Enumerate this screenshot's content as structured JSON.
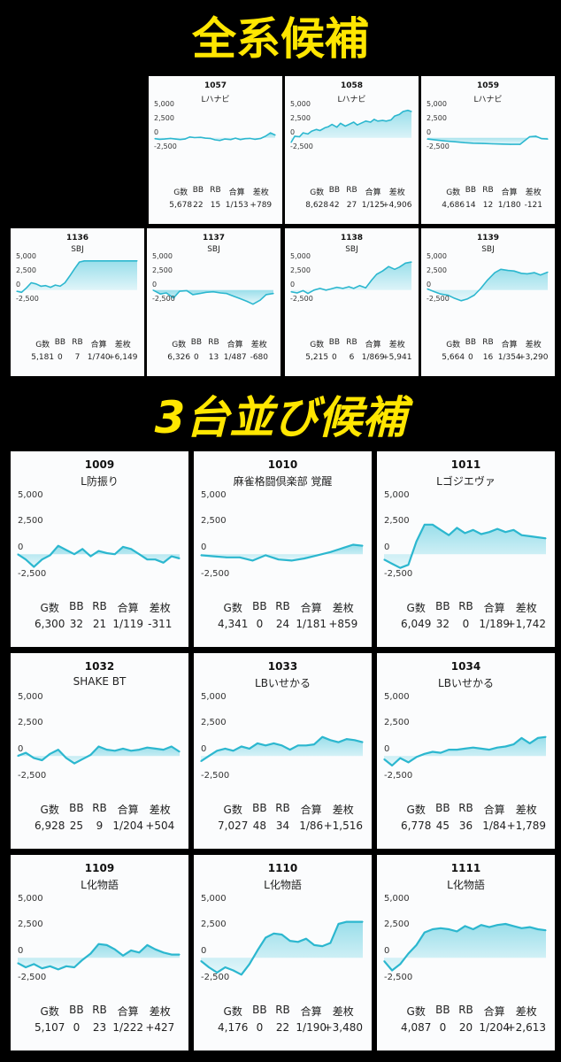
{
  "headings": {
    "section1": "全系候補",
    "section2": "3台並び候補"
  },
  "stat_labels": [
    "G数",
    "BB",
    "RB",
    "合算",
    "差枚"
  ],
  "y_tick_labels": [
    "5,000",
    "2,500",
    "0",
    "-2,500"
  ],
  "colors": {
    "line": "#2cb7cf",
    "fill_top": "#8fdbe8",
    "fill_bottom": "#e3f6fa",
    "heading": "#ffe600"
  },
  "chart_data": [
    {
      "type": "area",
      "machine_no": "1057",
      "machine_name": "Lハナビ",
      "ylim": [
        -3500,
        5800
      ],
      "y_ticks": [
        5000,
        2500,
        0,
        -2500
      ],
      "grid": false,
      "stats": {
        "games": "5,678",
        "bb": "22",
        "rb": "15",
        "total": "1/153",
        "diff": "+789"
      },
      "x": [
        0,
        0.04,
        0.08,
        0.13,
        0.17,
        0.21,
        0.25,
        0.29,
        0.33,
        0.38,
        0.42,
        0.46,
        0.5,
        0.54,
        0.58,
        0.63,
        0.67,
        0.71,
        0.75,
        0.79,
        0.83,
        0.88,
        0.92,
        0.96,
        1
      ],
      "y": [
        -150,
        -250,
        -200,
        -100,
        -200,
        -300,
        -200,
        150,
        50,
        100,
        -50,
        -100,
        -350,
        -450,
        -200,
        -300,
        -50,
        -300,
        -150,
        -100,
        -250,
        -100,
        300,
        900,
        500
      ]
    },
    {
      "type": "area",
      "machine_no": "1058",
      "machine_name": "Lハナビ",
      "ylim": [
        -3500,
        5800
      ],
      "y_ticks": [
        5000,
        2500,
        0,
        -2500
      ],
      "grid": false,
      "stats": {
        "games": "8,628",
        "bb": "42",
        "rb": "27",
        "total": "1/125",
        "diff": "+4,906"
      },
      "x": [
        0,
        0.03,
        0.07,
        0.1,
        0.14,
        0.17,
        0.21,
        0.24,
        0.28,
        0.31,
        0.34,
        0.38,
        0.41,
        0.45,
        0.48,
        0.52,
        0.55,
        0.59,
        0.62,
        0.66,
        0.69,
        0.72,
        0.76,
        0.79,
        0.83,
        0.86,
        0.9,
        0.93,
        0.97,
        1
      ],
      "y": [
        -800,
        300,
        200,
        900,
        700,
        1200,
        1500,
        1300,
        1800,
        2000,
        2400,
        1900,
        2600,
        2100,
        2400,
        2800,
        2300,
        2700,
        3000,
        2800,
        3300,
        3000,
        3100,
        3000,
        3200,
        3900,
        4200,
        4700,
        4900,
        4700
      ]
    },
    {
      "type": "area",
      "machine_no": "1059",
      "machine_name": "Lハナビ",
      "ylim": [
        -3500,
        5800
      ],
      "y_ticks": [
        5000,
        2500,
        0,
        -2500
      ],
      "grid": false,
      "stats": {
        "games": "4,686",
        "bb": "14",
        "rb": "12",
        "total": "1/180",
        "diff": "-121"
      },
      "x": [
        0,
        0.08,
        0.15,
        0.23,
        0.31,
        0.38,
        0.46,
        0.54,
        0.62,
        0.69,
        0.77,
        0.85,
        0.9,
        0.95,
        1
      ],
      "y": [
        -200,
        -400,
        -550,
        -700,
        -850,
        -950,
        -1000,
        -1050,
        -1100,
        -1150,
        -1150,
        200,
        300,
        -150,
        -200
      ]
    },
    {
      "type": "area",
      "machine_no": "1136",
      "machine_name": "SBJ",
      "ylim": [
        -3500,
        5800
      ],
      "y_ticks": [
        5000,
        2500,
        0,
        -2500
      ],
      "grid": false,
      "stats": {
        "games": "5,181",
        "bb": "0",
        "rb": "7",
        "total": "1/740",
        "diff": "+6,149"
      },
      "x": [
        0,
        0.04,
        0.08,
        0.12,
        0.16,
        0.2,
        0.24,
        0.28,
        0.32,
        0.36,
        0.4,
        0.44,
        0.48,
        0.52,
        0.56,
        0.6,
        0.64,
        0.68,
        0.72,
        0.76,
        0.8,
        0.84,
        0.88,
        0.92,
        0.96,
        1
      ],
      "y": [
        -200,
        -400,
        400,
        1300,
        1100,
        700,
        800,
        500,
        900,
        700,
        1300,
        2500,
        3800,
        5000,
        5200,
        5200,
        5200,
        5200,
        5200,
        5200,
        5200,
        5200,
        5200,
        5200,
        5200,
        5200
      ]
    },
    {
      "type": "area",
      "machine_no": "1137",
      "machine_name": "SBJ",
      "ylim": [
        -3500,
        5800
      ],
      "y_ticks": [
        5000,
        2500,
        0,
        -2500
      ],
      "grid": false,
      "stats": {
        "games": "6,326",
        "bb": "0",
        "rb": "13",
        "total": "1/487",
        "diff": "-680"
      },
      "x": [
        0,
        0.06,
        0.11,
        0.17,
        0.22,
        0.28,
        0.33,
        0.39,
        0.44,
        0.5,
        0.56,
        0.61,
        0.67,
        0.72,
        0.78,
        0.83,
        0.89,
        0.94,
        1
      ],
      "y": [
        0,
        -700,
        -500,
        -1400,
        -200,
        -100,
        -800,
        -600,
        -400,
        -300,
        -500,
        -600,
        -1100,
        -1500,
        -2000,
        -2500,
        -1800,
        -800,
        -600
      ]
    },
    {
      "type": "area",
      "machine_no": "1138",
      "machine_name": "SBJ",
      "ylim": [
        -3500,
        5800
      ],
      "y_ticks": [
        5000,
        2500,
        0,
        -2500
      ],
      "grid": false,
      "stats": {
        "games": "5,215",
        "bb": "0",
        "rb": "6",
        "total": "1/869",
        "diff": "+5,941"
      },
      "x": [
        0,
        0.05,
        0.1,
        0.14,
        0.19,
        0.24,
        0.29,
        0.33,
        0.38,
        0.43,
        0.48,
        0.52,
        0.57,
        0.62,
        0.67,
        0.71,
        0.76,
        0.81,
        0.86,
        0.9,
        0.95,
        1
      ],
      "y": [
        -300,
        -500,
        -100,
        -600,
        0,
        300,
        0,
        200,
        500,
        300,
        600,
        300,
        800,
        400,
        1800,
        2800,
        3400,
        4200,
        3700,
        4100,
        4800,
        5000
      ]
    },
    {
      "type": "area",
      "machine_no": "1139",
      "machine_name": "SBJ",
      "ylim": [
        -3500,
        5800
      ],
      "y_ticks": [
        5000,
        2500,
        0,
        -2500
      ],
      "grid": false,
      "stats": {
        "games": "5,664",
        "bb": "0",
        "rb": "16",
        "total": "1/354",
        "diff": "+3,290"
      },
      "x": [
        0,
        0.06,
        0.11,
        0.17,
        0.22,
        0.28,
        0.33,
        0.39,
        0.44,
        0.5,
        0.56,
        0.61,
        0.67,
        0.72,
        0.78,
        0.83,
        0.89,
        0.94,
        1
      ],
      "y": [
        200,
        -300,
        -700,
        -900,
        -1400,
        -1900,
        -1600,
        -900,
        200,
        1800,
        3100,
        3700,
        3500,
        3400,
        3000,
        2900,
        3100,
        2700,
        3200
      ]
    },
    {
      "type": "area",
      "machine_no": "1009",
      "machine_name": "L防振り",
      "ylim": [
        -3500,
        5800
      ],
      "y_ticks": [
        5000,
        2500,
        0,
        -2500
      ],
      "grid": false,
      "stats": {
        "games": "6,300",
        "bb": "32",
        "rb": "21",
        "total": "1/119",
        "diff": "-311"
      },
      "x": [
        0,
        0.05,
        0.1,
        0.15,
        0.2,
        0.25,
        0.3,
        0.35,
        0.4,
        0.45,
        0.5,
        0.55,
        0.6,
        0.65,
        0.7,
        0.75,
        0.8,
        0.85,
        0.9,
        0.95,
        1
      ],
      "y": [
        0,
        -500,
        -1200,
        -500,
        -100,
        800,
        400,
        0,
        500,
        -200,
        300,
        100,
        0,
        700,
        500,
        0,
        -500,
        -500,
        -800,
        -200,
        -400
      ]
    },
    {
      "type": "area",
      "machine_no": "1010",
      "machine_name": "麻雀格闘倶楽部 覚醒",
      "ylim": [
        -3500,
        5800
      ],
      "y_ticks": [
        5000,
        2500,
        0,
        -2500
      ],
      "grid": false,
      "stats": {
        "games": "4,341",
        "bb": "0",
        "rb": "24",
        "total": "1/181",
        "diff": "+859"
      },
      "x": [
        0,
        0.08,
        0.16,
        0.24,
        0.32,
        0.4,
        0.48,
        0.56,
        0.64,
        0.72,
        0.8,
        0.88,
        0.94,
        1
      ],
      "y": [
        -100,
        -200,
        -300,
        -300,
        -600,
        -100,
        -500,
        -600,
        -400,
        -100,
        200,
        600,
        900,
        800
      ]
    },
    {
      "type": "area",
      "machine_no": "1011",
      "machine_name": "Lゴジエヴァ",
      "ylim": [
        -3500,
        5800
      ],
      "y_ticks": [
        5000,
        2500,
        0,
        -2500
      ],
      "grid": false,
      "stats": {
        "games": "6,049",
        "bb": "32",
        "rb": "0",
        "total": "1/189",
        "diff": "+1,742"
      },
      "x": [
        0,
        0.05,
        0.1,
        0.15,
        0.2,
        0.25,
        0.3,
        0.35,
        0.4,
        0.45,
        0.5,
        0.55,
        0.6,
        0.65,
        0.7,
        0.75,
        0.8,
        0.85,
        0.9,
        0.95,
        1
      ],
      "y": [
        -500,
        -900,
        -1300,
        -1000,
        1200,
        2800,
        2800,
        2300,
        1800,
        2500,
        2000,
        2300,
        1900,
        2100,
        2400,
        2100,
        2300,
        1800,
        1700,
        1600,
        1500
      ]
    },
    {
      "type": "area",
      "machine_no": "1032",
      "machine_name": "SHAKE BT",
      "ylim": [
        -3500,
        5800
      ],
      "y_ticks": [
        5000,
        2500,
        0,
        -2500
      ],
      "grid": false,
      "stats": {
        "games": "6,928",
        "bb": "25",
        "rb": "9",
        "total": "1/204",
        "diff": "+504"
      },
      "x": [
        0,
        0.05,
        0.1,
        0.15,
        0.2,
        0.25,
        0.3,
        0.35,
        0.4,
        0.45,
        0.5,
        0.55,
        0.6,
        0.65,
        0.7,
        0.75,
        0.8,
        0.85,
        0.9,
        0.95,
        1
      ],
      "y": [
        0,
        300,
        -200,
        -400,
        200,
        600,
        -200,
        -700,
        -300,
        100,
        900,
        600,
        500,
        700,
        500,
        600,
        800,
        700,
        600,
        900,
        400
      ]
    },
    {
      "type": "area",
      "machine_no": "1033",
      "machine_name": "LBいせかる",
      "ylim": [
        -3500,
        5800
      ],
      "y_ticks": [
        5000,
        2500,
        0,
        -2500
      ],
      "grid": false,
      "stats": {
        "games": "7,027",
        "bb": "48",
        "rb": "34",
        "total": "1/86",
        "diff": "+1,516"
      },
      "x": [
        0,
        0.05,
        0.1,
        0.15,
        0.2,
        0.25,
        0.3,
        0.35,
        0.4,
        0.45,
        0.5,
        0.55,
        0.6,
        0.65,
        0.7,
        0.75,
        0.8,
        0.85,
        0.9,
        0.95,
        1
      ],
      "y": [
        -500,
        0,
        500,
        700,
        500,
        900,
        700,
        1200,
        1000,
        1200,
        1000,
        600,
        1000,
        1000,
        1100,
        1800,
        1500,
        1300,
        1600,
        1500,
        1300
      ]
    },
    {
      "type": "area",
      "machine_no": "1034",
      "machine_name": "LBいせかる",
      "ylim": [
        -3500,
        5800
      ],
      "y_ticks": [
        5000,
        2500,
        0,
        -2500
      ],
      "grid": false,
      "stats": {
        "games": "6,778",
        "bb": "45",
        "rb": "36",
        "total": "1/84",
        "diff": "+1,789"
      },
      "x": [
        0,
        0.05,
        0.1,
        0.15,
        0.2,
        0.25,
        0.3,
        0.35,
        0.4,
        0.45,
        0.5,
        0.55,
        0.6,
        0.65,
        0.7,
        0.75,
        0.8,
        0.85,
        0.9,
        0.95,
        1
      ],
      "y": [
        -300,
        -900,
        -200,
        -600,
        -100,
        200,
        400,
        300,
        600,
        600,
        700,
        800,
        700,
        600,
        800,
        900,
        1100,
        1700,
        1200,
        1700,
        1800
      ]
    },
    {
      "type": "area",
      "machine_no": "1109",
      "machine_name": "L化物語",
      "ylim": [
        -3500,
        5800
      ],
      "y_ticks": [
        5000,
        2500,
        0,
        -2500
      ],
      "grid": false,
      "stats": {
        "games": "5,107",
        "bb": "0",
        "rb": "23",
        "total": "1/222",
        "diff": "+427"
      },
      "x": [
        0,
        0.05,
        0.1,
        0.15,
        0.2,
        0.25,
        0.3,
        0.35,
        0.4,
        0.45,
        0.5,
        0.55,
        0.6,
        0.65,
        0.7,
        0.75,
        0.8,
        0.85,
        0.9,
        0.95,
        1
      ],
      "y": [
        -500,
        -900,
        -600,
        -1000,
        -800,
        -1100,
        -800,
        -900,
        -200,
        400,
        1300,
        1200,
        800,
        200,
        700,
        500,
        1200,
        800,
        500,
        300,
        300
      ]
    },
    {
      "type": "area",
      "machine_no": "1110",
      "machine_name": "L化物語",
      "ylim": [
        -3500,
        5800
      ],
      "y_ticks": [
        5000,
        2500,
        0,
        -2500
      ],
      "grid": false,
      "stats": {
        "games": "4,176",
        "bb": "0",
        "rb": "22",
        "total": "1/190",
        "diff": "+3,480"
      },
      "x": [
        0,
        0.05,
        0.1,
        0.15,
        0.2,
        0.25,
        0.3,
        0.35,
        0.4,
        0.45,
        0.5,
        0.55,
        0.6,
        0.65,
        0.7,
        0.75,
        0.8,
        0.85,
        0.9,
        0.95,
        1
      ],
      "y": [
        -300,
        -900,
        -1400,
        -900,
        -1200,
        -1600,
        -600,
        700,
        1900,
        2300,
        2200,
        1600,
        1500,
        1800,
        1200,
        1100,
        1400,
        3200,
        3400,
        3400,
        3400
      ]
    },
    {
      "type": "area",
      "machine_no": "1111",
      "machine_name": "L化物語",
      "ylim": [
        -3500,
        5800
      ],
      "y_ticks": [
        5000,
        2500,
        0,
        -2500
      ],
      "grid": false,
      "stats": {
        "games": "4,087",
        "bb": "0",
        "rb": "20",
        "total": "1/204",
        "diff": "+2,613"
      },
      "x": [
        0,
        0.05,
        0.1,
        0.15,
        0.2,
        0.25,
        0.3,
        0.35,
        0.4,
        0.45,
        0.5,
        0.55,
        0.6,
        0.65,
        0.7,
        0.75,
        0.8,
        0.85,
        0.9,
        0.95,
        1
      ],
      "y": [
        -300,
        -1200,
        -600,
        400,
        1200,
        2400,
        2700,
        2800,
        2700,
        2500,
        3000,
        2700,
        3100,
        2900,
        3100,
        3200,
        3000,
        2800,
        2900,
        2700,
        2600
      ]
    }
  ]
}
